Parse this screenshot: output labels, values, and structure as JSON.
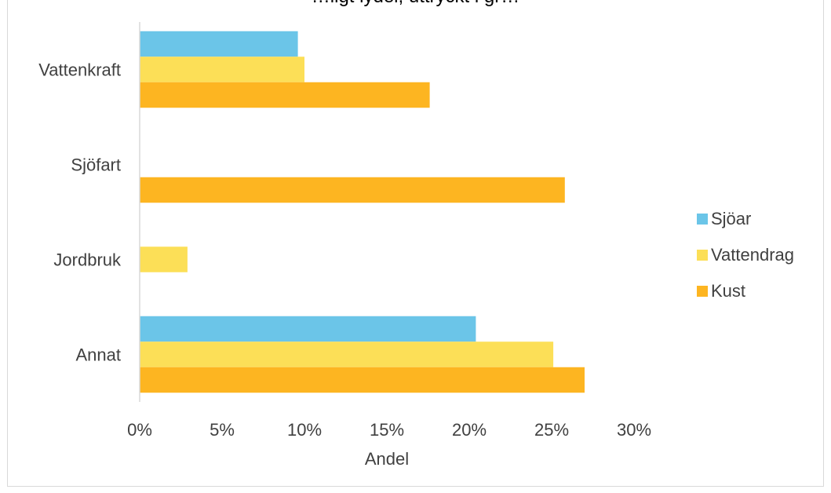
{
  "chart_data": {
    "type": "bar",
    "orientation": "horizontal",
    "title": "…ligt lydel, uttryckt i gr…",
    "categories": [
      "Vattenkraft",
      "Sjöfart",
      "Jordbruk",
      "Annat"
    ],
    "series": [
      {
        "name": "Sjöar",
        "color": "#6bc5e8",
        "values": [
          9.6,
          0,
          0,
          20.4
        ]
      },
      {
        "name": "Vattendrag",
        "color": "#fcdf57",
        "values": [
          10.0,
          0,
          2.9,
          25.1
        ]
      },
      {
        "name": "Kust",
        "color": "#fdb521",
        "values": [
          17.6,
          25.8,
          0,
          27.0
        ]
      }
    ],
    "xlabel": "Andel",
    "xlim": [
      0,
      30
    ],
    "xticks": [
      "0%",
      "5%",
      "10%",
      "15%",
      "20%",
      "25%",
      "30%"
    ],
    "legend_position": "right",
    "grid": false
  }
}
